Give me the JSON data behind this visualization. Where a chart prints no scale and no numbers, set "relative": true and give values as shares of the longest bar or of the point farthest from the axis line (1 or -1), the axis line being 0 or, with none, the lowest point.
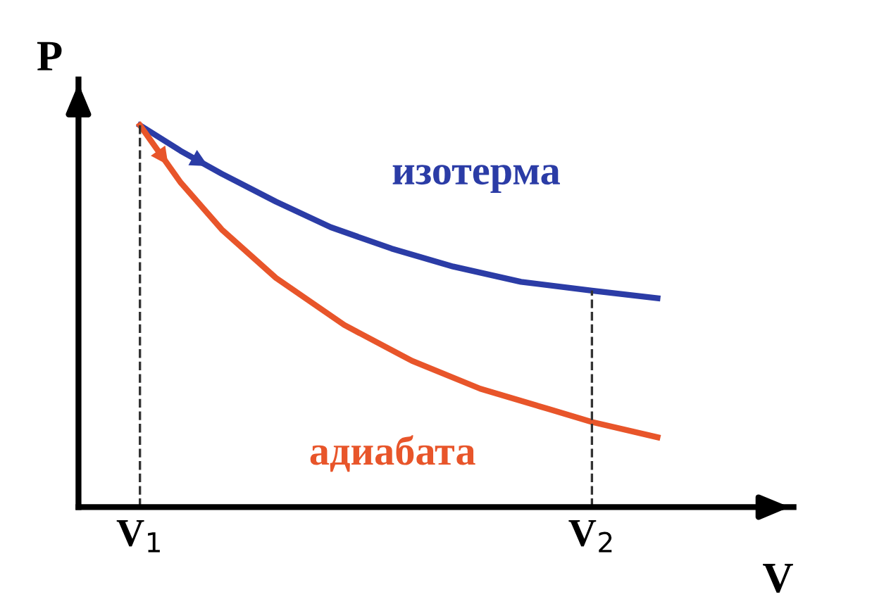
{
  "chart_data": {
    "type": "line",
    "relative": true,
    "xlabel": "V",
    "ylabel": "P",
    "xlim": [
      0.864,
      2.446
    ],
    "xticks": [
      {
        "value": 1,
        "label": "V$_{1}$"
      },
      {
        "value": 2,
        "label": "V$_{2}$"
      }
    ],
    "series": [
      {
        "name": "изотерма",
        "color": "#2b3ca6",
        "x": [
          1,
          1.09,
          1.181,
          1.301,
          1.422,
          1.557,
          1.693,
          1.843,
          2,
          2.145
        ],
        "values": [
          1,
          0.933,
          0.873,
          0.8,
          0.733,
          0.677,
          0.63,
          0.59,
          0.567,
          0.547
        ]
      },
      {
        "name": "адиабата",
        "color": "#e8552a",
        "x": [
          1,
          1.09,
          1.181,
          1.301,
          1.452,
          1.602,
          1.753,
          1.904,
          2,
          2.145
        ],
        "values": [
          1,
          0.85,
          0.727,
          0.6,
          0.477,
          0.383,
          0.31,
          0.257,
          0.223,
          0.183
        ]
      }
    ],
    "ref_lines": [
      {
        "axis": "x",
        "value": 1,
        "color": "#333333",
        "line_style": "dashed"
      },
      {
        "axis": "x",
        "value": 2,
        "color": "#333333",
        "line_style": "dashed"
      }
    ],
    "marker": "none",
    "line_style": "solid",
    "grid": false,
    "legend": false
  }
}
